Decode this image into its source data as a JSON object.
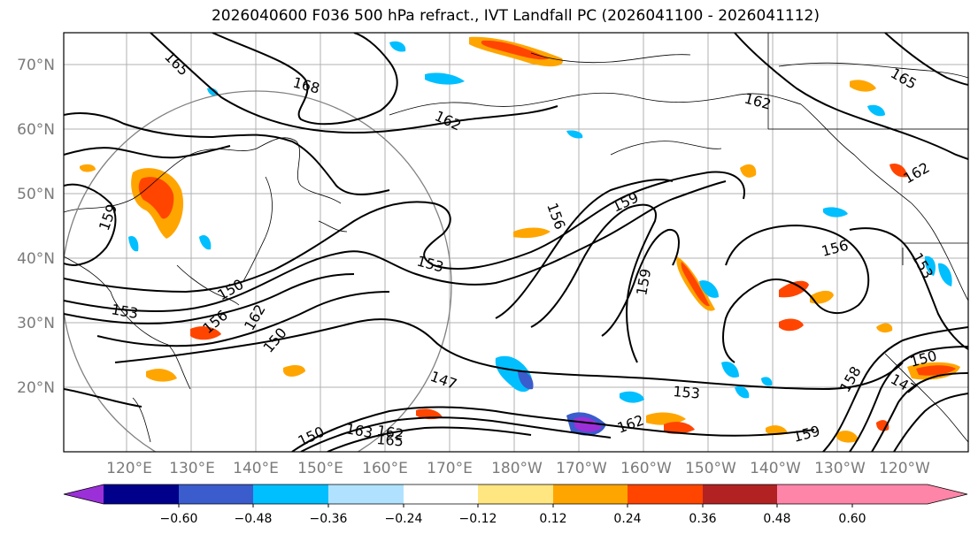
{
  "title": "2026040600 F036 500 hPa refract., IVT Landfall PC (2026041100 - 2026041112)",
  "lat_labels": [
    "70°N",
    "60°N",
    "50°N",
    "40°N",
    "30°N",
    "20°N"
  ],
  "lon_labels": [
    "120°E",
    "130°E",
    "140°E",
    "150°E",
    "160°E",
    "170°E",
    "180°W",
    "170°W",
    "160°W",
    "150°W",
    "140°W",
    "130°W",
    "120°W"
  ],
  "contour_labels": [
    "168",
    "165",
    "162",
    "162",
    "165",
    "159",
    "156",
    "153",
    "159",
    "156",
    "159",
    "150",
    "153",
    "156",
    "162",
    "150",
    "147",
    "153",
    "162",
    "150",
    "158",
    "147",
    "159",
    "165",
    "162",
    "163",
    "150",
    "162",
    "153"
  ],
  "colorbar": {
    "colors": [
      "#9b30d8",
      "#00008b",
      "#3a5ccc",
      "#00bfff",
      "#b0e2ff",
      "#ffffff",
      "#ffe680",
      "#ffa500",
      "#ff4500",
      "#b22222",
      "#ff85a8"
    ],
    "tick_labels": [
      "−0.60",
      "−0.48",
      "−0.36",
      "−0.24",
      "−0.12",
      "0.12",
      "0.24",
      "0.36",
      "0.48",
      "0.60"
    ]
  }
}
